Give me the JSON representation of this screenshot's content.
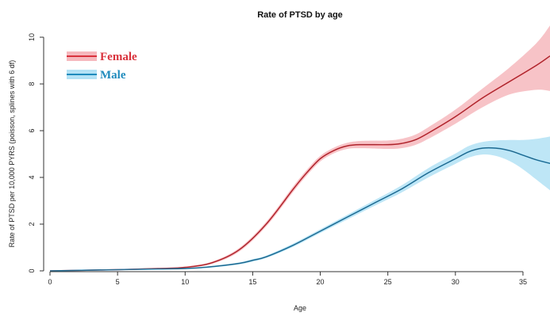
{
  "chart_data": {
    "type": "line",
    "title": "Rate of PTSD by age",
    "xlabel": "Age",
    "ylabel": "Rate of PTSD per 10,000 PYRS (poisson, splines with 6 df)",
    "xlim": [
      0,
      37
    ],
    "ylim": [
      0,
      10
    ],
    "x_ticks": [
      0,
      5,
      10,
      15,
      20,
      25,
      30,
      35
    ],
    "y_ticks": [
      0,
      2,
      4,
      6,
      8,
      10
    ],
    "grid": false,
    "legend_position": "top-left",
    "series": [
      {
        "name": "Female",
        "color": "#d9323c",
        "band_color": "#f6b8bd",
        "x": [
          0,
          5,
          8,
          10,
          12,
          14,
          16,
          18,
          19,
          20,
          21,
          22,
          23,
          25,
          26,
          27,
          28,
          30,
          32,
          34,
          36,
          37
        ],
        "y": [
          0,
          0.05,
          0.1,
          0.15,
          0.35,
          0.9,
          2.0,
          3.5,
          4.2,
          4.8,
          5.15,
          5.35,
          5.4,
          5.4,
          5.45,
          5.6,
          5.9,
          6.6,
          7.4,
          8.1,
          8.8,
          9.2
        ],
        "lower": [
          0,
          0.03,
          0.07,
          0.12,
          0.3,
          0.82,
          1.9,
          3.38,
          4.08,
          4.68,
          5.03,
          5.22,
          5.25,
          5.22,
          5.25,
          5.38,
          5.65,
          6.3,
          7.0,
          7.55,
          7.75,
          7.7
        ],
        "upper": [
          0.02,
          0.08,
          0.13,
          0.18,
          0.4,
          0.98,
          2.1,
          3.62,
          4.32,
          4.92,
          5.27,
          5.48,
          5.56,
          5.58,
          5.65,
          5.82,
          6.15,
          6.9,
          7.8,
          8.7,
          9.75,
          10.5
        ]
      },
      {
        "name": "Male",
        "color": "#1f8bbd",
        "band_color": "#b3e2f5",
        "x": [
          0,
          5,
          8,
          10,
          12,
          14,
          15,
          16,
          18,
          20,
          22,
          24,
          26,
          28,
          30,
          31,
          32,
          33,
          34,
          35,
          36,
          37
        ],
        "y": [
          0,
          0.05,
          0.08,
          0.1,
          0.18,
          0.32,
          0.45,
          0.6,
          1.1,
          1.7,
          2.3,
          2.9,
          3.5,
          4.2,
          4.8,
          5.1,
          5.25,
          5.25,
          5.15,
          4.95,
          4.75,
          4.6
        ],
        "lower": [
          0,
          0.03,
          0.06,
          0.08,
          0.15,
          0.28,
          0.4,
          0.55,
          1.03,
          1.62,
          2.2,
          2.78,
          3.35,
          4.0,
          4.58,
          4.85,
          4.98,
          4.92,
          4.7,
          4.35,
          3.9,
          3.45
        ],
        "upper": [
          0.02,
          0.07,
          0.1,
          0.12,
          0.21,
          0.36,
          0.5,
          0.65,
          1.17,
          1.78,
          2.4,
          3.02,
          3.65,
          4.4,
          5.02,
          5.35,
          5.52,
          5.58,
          5.6,
          5.6,
          5.65,
          5.75
        ]
      }
    ]
  }
}
